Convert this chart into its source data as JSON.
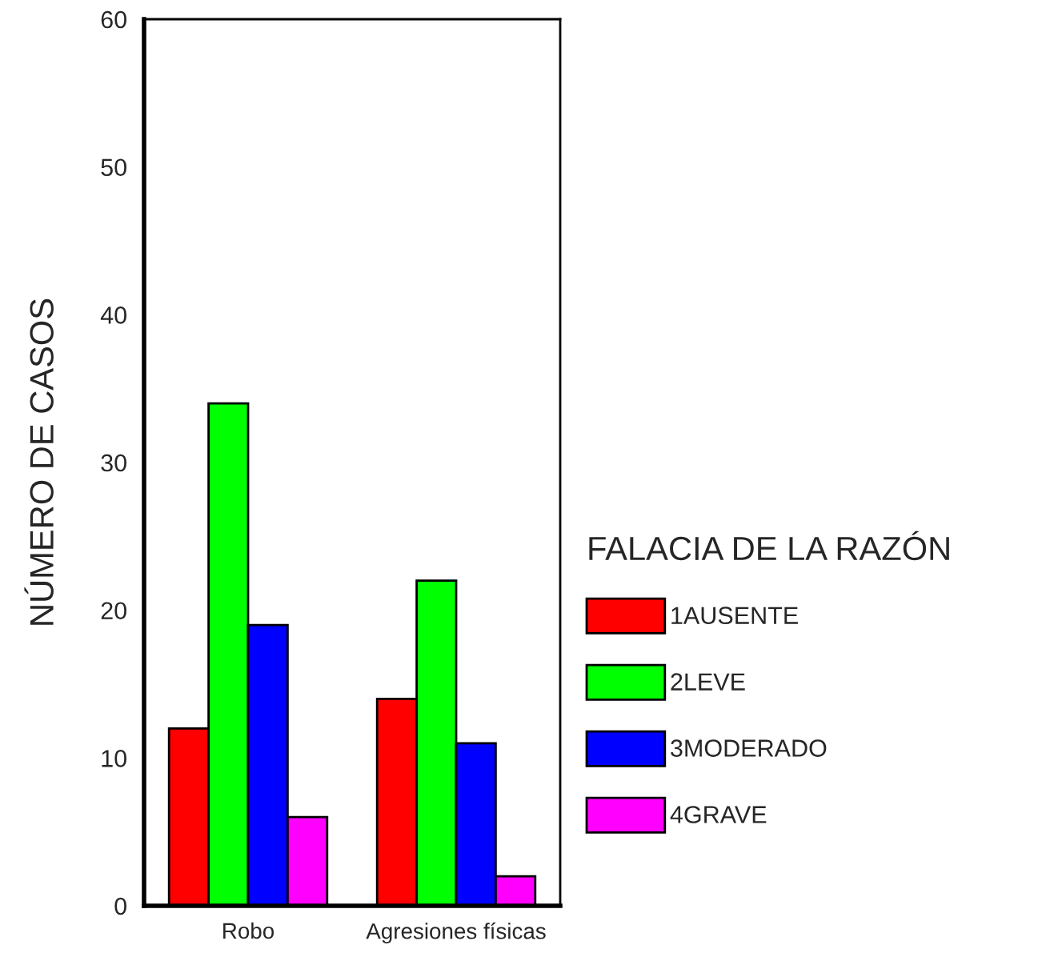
{
  "chart_data": {
    "type": "bar",
    "ylabel": "NÚMERO DE CASOS",
    "legend_title": "FALACIA DE LA RAZÓN",
    "categories": [
      "Robo",
      "Agresiones físicas"
    ],
    "series": [
      {
        "name": "1AUSENTE",
        "color": "#ff0000",
        "values": [
          12,
          14
        ]
      },
      {
        "name": "2LEVE",
        "color": "#00ff00",
        "values": [
          34,
          22
        ]
      },
      {
        "name": "3MODERADO",
        "color": "#0000ff",
        "values": [
          19,
          11
        ]
      },
      {
        "name": "4GRAVE",
        "color": "#ff00ff",
        "values": [
          6,
          2
        ]
      }
    ],
    "ylim": [
      0,
      60
    ],
    "yticks": [
      0,
      10,
      20,
      30,
      40,
      50,
      60
    ],
    "grid": false,
    "legend": "right"
  }
}
